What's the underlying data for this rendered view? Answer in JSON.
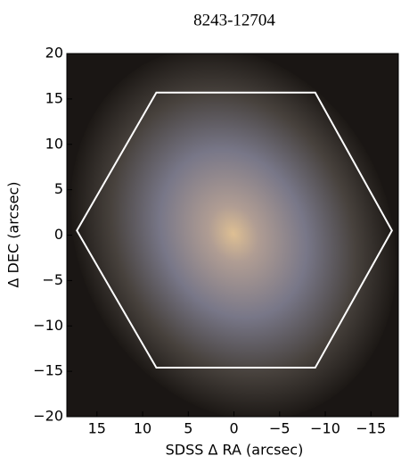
{
  "chart_data": {
    "type": "image",
    "title": "8243-12704",
    "x_label": "SDSS Δ RA (arcsec)",
    "y_label": "Δ DEC (arcsec)",
    "xlim": [
      18.3,
      -18
    ],
    "ylim": [
      -20,
      20
    ],
    "xticks": [
      15,
      10,
      5,
      0,
      {
        "value": -5,
        "label": "−5"
      },
      {
        "value": -10,
        "label": "−10"
      },
      {
        "value": -15,
        "label": "−15"
      }
    ],
    "yticks": [
      {
        "value": -20,
        "label": "−20"
      },
      {
        "value": -15,
        "label": "−15"
      },
      {
        "value": -10,
        "label": "−10"
      },
      {
        "value": -5,
        "label": "−5"
      },
      0,
      5,
      10,
      15,
      20
    ],
    "outline": {
      "color": "#ffffff",
      "x": [
        17.2,
        8.5,
        -8.9,
        -17.3,
        -8.9,
        8.5
      ],
      "y": [
        0.5,
        15.7,
        15.7,
        0.5,
        -14.6,
        -14.6
      ]
    }
  }
}
